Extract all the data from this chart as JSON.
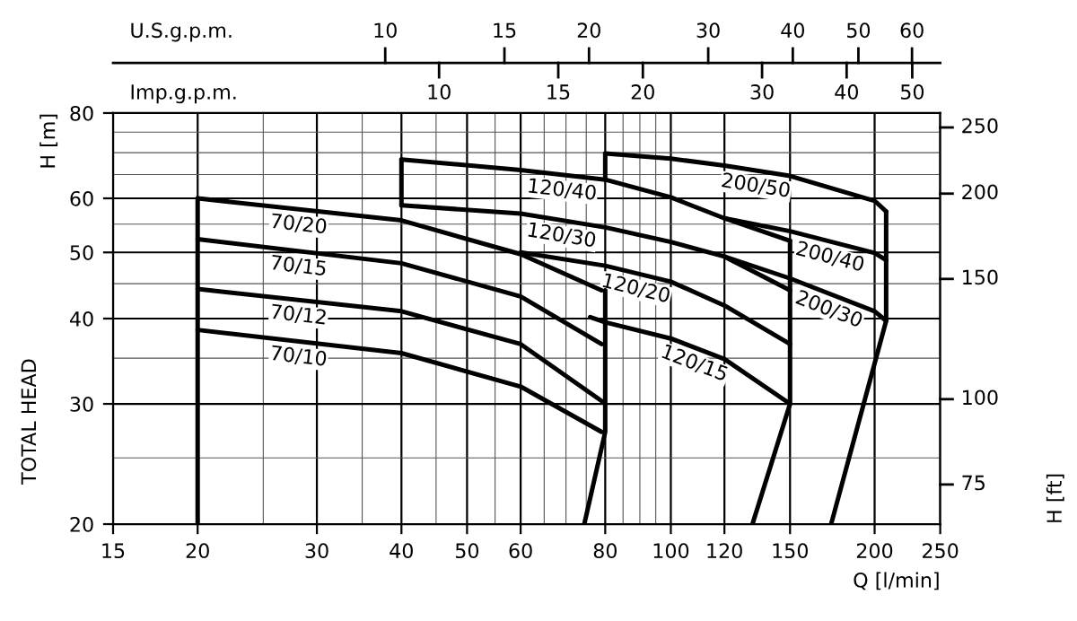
{
  "chart_data": [
    {
      "type": "line",
      "xlabel": "Q [l/min]",
      "ylabel": "H [m]",
      "annotations": [
        "TOTAL HEAD"
      ],
      "log": "xy",
      "grid": true,
      "xlim": [
        15,
        250
      ],
      "xticks": [
        15,
        20,
        30,
        40,
        50,
        60,
        80,
        100,
        120,
        150,
        200,
        250
      ],
      "ylim": [
        20,
        80
      ],
      "yticks": [
        20,
        30,
        40,
        50,
        60,
        80
      ],
      "series": [
        {
          "name": "70/20",
          "color": "#000000",
          "x": [
            20,
            40,
            60,
            79
          ],
          "values": [
            60,
            55.7,
            49.7,
            44
          ]
        },
        {
          "name": "70/15",
          "color": "#000000",
          "x": [
            20,
            40,
            60,
            79
          ],
          "values": [
            52.3,
            48.2,
            43.1,
            36.7
          ]
        },
        {
          "name": "70/12",
          "color": "#000000",
          "x": [
            20,
            40,
            60,
            79
          ],
          "values": [
            44.2,
            41,
            36.7,
            30.3
          ]
        },
        {
          "name": "70/10",
          "color": "#000000",
          "x": [
            20,
            40,
            60,
            79
          ],
          "values": [
            38.5,
            35.6,
            31.8,
            27.3
          ]
        },
        {
          "color": "#000000",
          "x": [
            20,
            20
          ],
          "values": [
            20,
            60
          ]
        },
        {
          "color": "#000000",
          "x": [
            74.5,
            80,
            80
          ],
          "values": [
            20,
            27.3,
            44
          ]
        },
        {
          "name": "120/40",
          "color": "#000000",
          "x": [
            40,
            60,
            80,
            100,
            120,
            150
          ],
          "values": [
            68.4,
            66,
            63.9,
            60.2,
            56.1,
            52
          ]
        },
        {
          "name": "120/30",
          "color": "#000000",
          "x": [
            40,
            60,
            80,
            100,
            120,
            150
          ],
          "values": [
            58.6,
            57,
            54.4,
            51.8,
            49.3,
            44
          ]
        },
        {
          "name": "120/20",
          "color": "#000000",
          "x": [
            60,
            80,
            100,
            120,
            150
          ],
          "values": [
            50,
            47.8,
            45.3,
            41.8,
            36.7
          ]
        },
        {
          "name": "120/15",
          "color": "#000000",
          "x": [
            76,
            80,
            100,
            120,
            150
          ],
          "values": [
            40.2,
            39.5,
            37.4,
            34.9,
            30
          ]
        },
        {
          "color": "#000000",
          "x": [
            40,
            40
          ],
          "values": [
            58.6,
            68.4
          ]
        },
        {
          "color": "#000000",
          "x": [
            132,
            150,
            150
          ],
          "values": [
            20,
            30,
            52
          ]
        },
        {
          "name": "200/50",
          "color": "#000000",
          "x": [
            80,
            100,
            120,
            150,
            200,
            208
          ],
          "values": [
            69.8,
            68.6,
            67,
            64.7,
            59.5,
            57.4
          ]
        },
        {
          "name": "200/40",
          "color": "#000000",
          "x": [
            120,
            150,
            200,
            208
          ],
          "values": [
            56.1,
            53.7,
            49.9,
            48.7
          ]
        },
        {
          "name": "200/30",
          "color": "#000000",
          "x": [
            120,
            150,
            200,
            208
          ],
          "values": [
            49.3,
            45.8,
            41,
            39.7
          ]
        },
        {
          "color": "#000000",
          "x": [
            80,
            80
          ],
          "values": [
            63.9,
            69.8
          ]
        },
        {
          "color": "#000000",
          "x": [
            172.5,
            208,
            208
          ],
          "values": [
            20,
            39.7,
            57.4
          ]
        }
      ]
    },
    {
      "type": "other",
      "xlabel": "U.S.g.p.m.",
      "annotations": [
        "10",
        "15",
        "20",
        "30",
        "40",
        "50",
        "60"
      ]
    },
    {
      "type": "other",
      "xlabel": "Imp.g.p.m.",
      "annotations": [
        "10",
        "15",
        "20",
        "30",
        "40",
        "50"
      ]
    },
    {
      "type": "other",
      "ylabel": "H [ft]",
      "annotations": [
        "75",
        "100",
        "150",
        "200",
        "250"
      ]
    }
  ]
}
